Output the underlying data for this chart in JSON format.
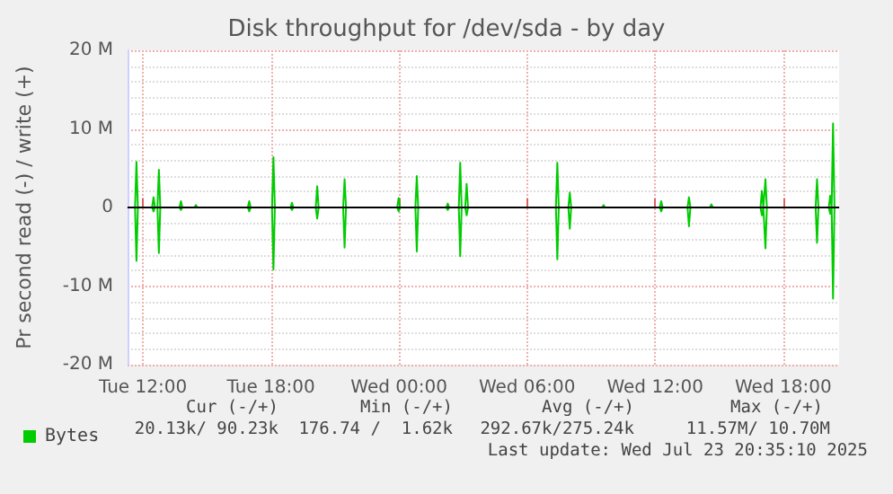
{
  "chart_data": {
    "type": "line",
    "title": "Disk throughput for /dev/sda - by day",
    "ylabel": "Pr second read (-) / write (+)",
    "x": [
      "2025-07-22T11:17",
      "2025-07-22T11:38",
      "2025-07-22T11:42",
      "2025-07-22T11:46",
      "2025-07-22T12:26",
      "2025-07-22T12:30",
      "2025-07-22T12:34",
      "2025-07-22T12:41",
      "2025-07-22T12:45",
      "2025-07-22T12:49",
      "2025-07-22T13:43",
      "2025-07-22T13:47",
      "2025-07-22T13:51",
      "2025-07-22T14:25",
      "2025-07-22T14:29",
      "2025-07-22T14:33",
      "2025-07-22T16:55",
      "2025-07-22T16:59",
      "2025-07-22T17:03",
      "2025-07-22T18:03",
      "2025-07-22T18:07",
      "2025-07-22T18:11",
      "2025-07-22T18:55",
      "2025-07-22T18:59",
      "2025-07-22T19:03",
      "2025-07-22T20:06",
      "2025-07-22T20:10",
      "2025-07-22T20:14",
      "2025-07-22T21:23",
      "2025-07-22T21:27",
      "2025-07-22T21:31",
      "2025-07-22T23:55",
      "2025-07-22T23:59",
      "2025-07-23T00:03",
      "2025-07-23T00:46",
      "2025-07-23T00:50",
      "2025-07-23T00:54",
      "2025-07-23T02:13",
      "2025-07-23T02:17",
      "2025-07-23T02:21",
      "2025-07-23T02:48",
      "2025-07-23T02:52",
      "2025-07-23T02:56",
      "2025-07-23T03:06",
      "2025-07-23T03:10",
      "2025-07-23T03:14",
      "2025-07-23T07:21",
      "2025-07-23T07:25",
      "2025-07-23T07:29",
      "2025-07-23T07:56",
      "2025-07-23T08:00",
      "2025-07-23T08:04",
      "2025-07-23T09:31",
      "2025-07-23T09:35",
      "2025-07-23T09:39",
      "2025-07-23T12:13",
      "2025-07-23T12:17",
      "2025-07-23T12:21",
      "2025-07-23T13:31",
      "2025-07-23T13:35",
      "2025-07-23T13:39",
      "2025-07-23T14:34",
      "2025-07-23T14:38",
      "2025-07-23T14:42",
      "2025-07-23T16:56",
      "2025-07-23T17:00",
      "2025-07-23T17:04",
      "2025-07-23T17:06",
      "2025-07-23T17:10",
      "2025-07-23T17:14",
      "2025-07-23T19:31",
      "2025-07-23T19:35",
      "2025-07-23T19:39",
      "2025-07-23T20:08",
      "2025-07-23T20:12",
      "2025-07-23T20:16",
      "2025-07-23T20:17",
      "2025-07-23T20:20",
      "2025-07-23T20:24",
      "2025-07-23T20:37"
    ],
    "series": [
      {
        "name": "Bytes",
        "color": "#00cc00",
        "values": [
          0,
          0,
          5.8,
          0,
          0,
          1.3,
          0,
          0,
          4.8,
          0,
          0,
          0.8,
          0,
          0,
          0.3,
          0,
          0,
          0.8,
          0,
          0,
          6.4,
          0,
          0,
          0.6,
          0,
          0,
          2.7,
          0,
          0,
          3.6,
          0,
          0,
          1.2,
          0,
          0,
          4.0,
          0,
          0,
          0.5,
          0,
          0,
          5.7,
          0,
          0,
          3.0,
          0,
          0,
          5.7,
          0,
          0,
          1.9,
          0,
          0,
          0.3,
          0,
          0,
          0.8,
          0,
          0,
          1.3,
          0,
          0,
          0.4,
          0,
          0,
          2.1,
          0,
          0,
          3.6,
          0,
          0,
          3.6,
          0,
          0,
          1.5,
          0,
          0,
          10.7,
          0,
          0
        ]
      },
      {
        "color": "#00cc00",
        "values": [
          0,
          0,
          -6.8,
          0,
          0,
          -0.5,
          0,
          0,
          -5.8,
          0,
          0,
          -0.3,
          0,
          0,
          0,
          0,
          0,
          -0.5,
          0,
          0,
          -7.9,
          0,
          0,
          -0.3,
          0,
          0,
          -1.4,
          0,
          0,
          -5.1,
          0,
          0,
          -0.5,
          0,
          0,
          -5.6,
          0,
          0,
          -0.3,
          0,
          0,
          -6.2,
          0,
          0,
          -1.0,
          0,
          0,
          -6.6,
          0,
          0,
          -2.7,
          0,
          0,
          0,
          0,
          0,
          -0.5,
          0,
          0,
          -2.4,
          0,
          0,
          0,
          0,
          0,
          -1.0,
          0,
          0,
          -5.2,
          0,
          0,
          -4.5,
          0,
          0,
          -0.8,
          0,
          0,
          -11.6,
          0,
          0
        ]
      }
    ],
    "xlim": [
      "2025-07-22T11:17",
      "2025-07-23T20:37"
    ],
    "xticks": [
      {
        "value": "2025-07-22T12:00",
        "label": "Tue 12:00"
      },
      {
        "value": "2025-07-22T18:00",
        "label": "Tue 18:00"
      },
      {
        "value": "2025-07-23T00:00",
        "label": "Wed 00:00"
      },
      {
        "value": "2025-07-23T06:00",
        "label": "Wed 06:00"
      },
      {
        "value": "2025-07-23T12:00",
        "label": "Wed 12:00"
      },
      {
        "value": "2025-07-23T18:00",
        "label": "Wed 18:00"
      }
    ],
    "ylim": [
      -20,
      20
    ],
    "yticks": [
      {
        "value": -20,
        "label": "-20 M"
      },
      {
        "value": -10,
        "label": "-10 M"
      },
      {
        "value": 0,
        "label": "0"
      },
      {
        "value": 10,
        "label": "10 M"
      },
      {
        "value": 20,
        "label": "20 M"
      }
    ],
    "ref_lines": [
      {
        "axis": "y",
        "value": 0,
        "color": "#000000"
      }
    ],
    "grid": true,
    "legend": "bottom left",
    "marker": "none",
    "line_style": "solid",
    "annotations": [
      "Cur (-/+)",
      "Min (-/+)",
      "Avg (-/+)",
      "Max (-/+)",
      "20.13k/ 90.23k",
      "176.74 /  1.62k",
      "292.67k/275.24k",
      "11.57M/ 10.70M",
      "Last update: Wed Jul 23 20:35:10 2025"
    ]
  }
}
